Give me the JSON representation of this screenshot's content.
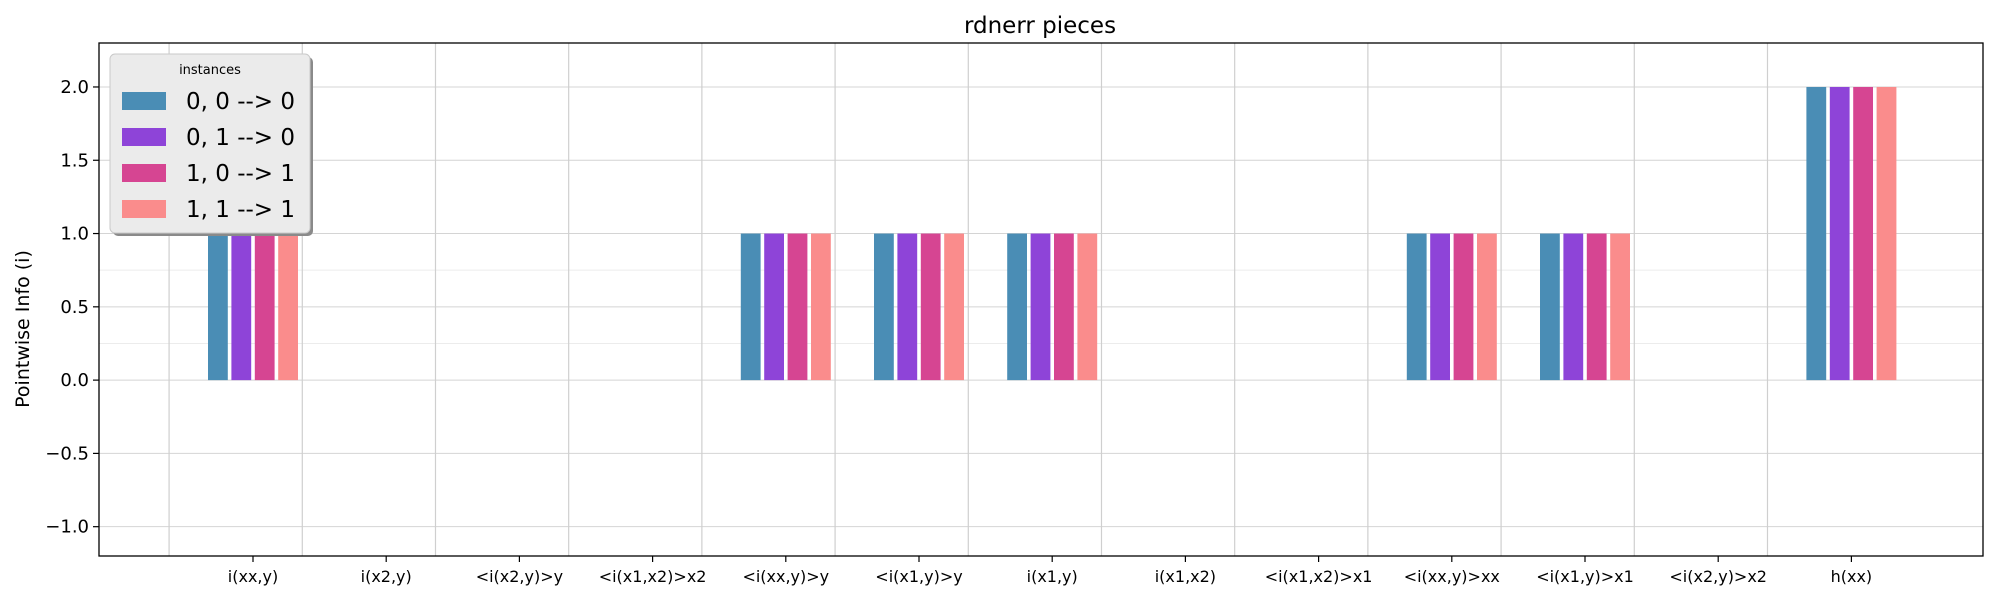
{
  "chart_data": {
    "type": "bar",
    "title": "rdnerr pieces",
    "xlabel": "",
    "ylabel": "Pointwise Info (i)",
    "ylim": [
      -1.2,
      2.3
    ],
    "yticks": [
      -1.0,
      -0.5,
      0.0,
      0.5,
      1.0,
      1.5,
      2.0
    ],
    "ytick_labels": [
      "−1.0",
      "−0.5",
      "0.0",
      "0.5",
      "1.0",
      "1.5",
      "2.0"
    ],
    "grid": true,
    "legend": {
      "title": "instances",
      "placement": "top-left"
    },
    "categories": [
      "i(xx,y)",
      "i(x2,y)",
      "<i(x2,y)>y",
      "<i(x1,x2)>x2",
      "<i(xx,y)>y",
      "<i(x1,y)>y",
      "i(x1,y)",
      "i(x1,x2)",
      "<i(x1,x2)>x1",
      "<i(xx,y)>xx",
      "<i(x1,y)>x1",
      "<i(x2,y)>x2",
      "h(xx)"
    ],
    "series": [
      {
        "name": "0, 0 --> 0",
        "color": "#4a8db5",
        "values": [
          1,
          0,
          0,
          0,
          1,
          1,
          1,
          0,
          0,
          1,
          1,
          0,
          2
        ]
      },
      {
        "name": "0, 1 --> 0",
        "color": "#8e44d8",
        "values": [
          1,
          0,
          0,
          0,
          1,
          1,
          1,
          0,
          0,
          1,
          1,
          0,
          2
        ]
      },
      {
        "name": "1, 0 --> 1",
        "color": "#d64592",
        "values": [
          1,
          0,
          0,
          0,
          1,
          1,
          1,
          0,
          0,
          1,
          1,
          0,
          2
        ]
      },
      {
        "name": "1, 1 --> 1",
        "color": "#fa8c8c",
        "values": [
          1,
          0,
          0,
          0,
          1,
          1,
          1,
          0,
          0,
          1,
          1,
          0,
          2
        ]
      }
    ]
  }
}
